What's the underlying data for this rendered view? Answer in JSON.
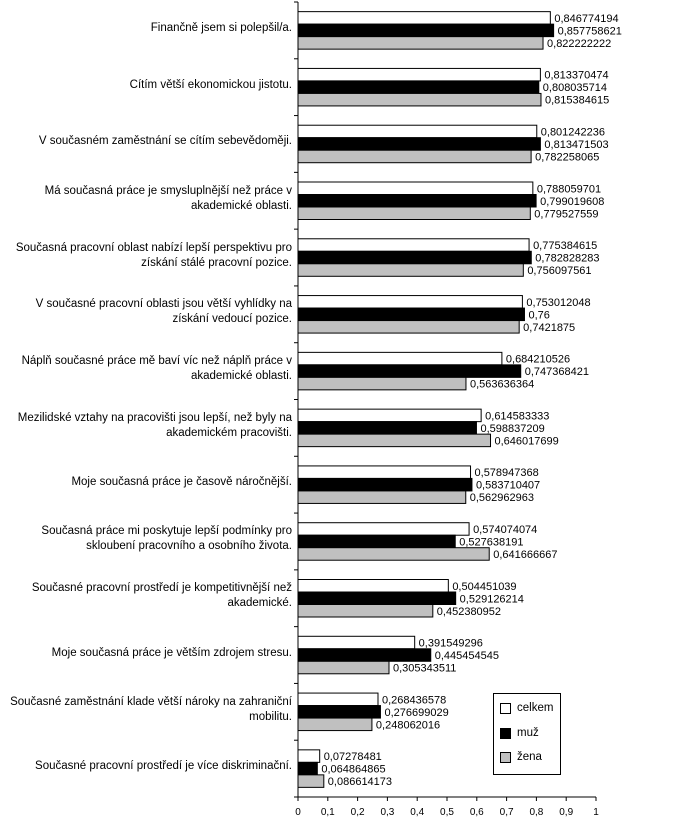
{
  "chart_data": {
    "type": "bar",
    "orientation": "horizontal",
    "categories": [
      "Finančně jsem si polepšil/a.",
      "Cítím větší ekonomickou jistotu.",
      "V současném zaměstnání se cítím sebevědoměji.",
      "Má současná práce je smysluplnější než práce v akademické oblasti.",
      "Současná pracovní oblast nabízí lepší perspektivu pro získání stálé pracovní pozice.",
      "V současné pracovní oblasti jsou větší vyhlídky na získání vedoucí pozice.",
      "Náplň současné práce mě baví víc než náplň práce v akademické oblasti.",
      "Mezilidské vztahy na pracovišti jsou lepší, než byly na akademickém pracovišti.",
      "Moje současná práce je časově náročnější.",
      "Současná práce mi poskytuje lepší podmínky pro skloubení pracovního a osobního života.",
      "Současné pracovní prostředí je kompetitivnější než akademické.",
      "Moje současná práce je větším zdrojem stresu.",
      "Současné zaměstnání klade větší nároky na zahraniční mobilitu.",
      "Současné pracovní prostředí je více diskriminační."
    ],
    "series": [
      {
        "name": "celkem",
        "color": "#ffffff",
        "values": [
          0.846774194,
          0.813370474,
          0.801242236,
          0.788059701,
          0.775384615,
          0.753012048,
          0.684210526,
          0.614583333,
          0.578947368,
          0.574074074,
          0.504451039,
          0.391549296,
          0.268436578,
          0.07278481
        ],
        "labels": [
          "0,846774194",
          "0,813370474",
          "0,801242236",
          "0,788059701",
          "0,775384615",
          "0,753012048",
          "0,684210526",
          "0,614583333",
          "0,578947368",
          "0,574074074",
          "0,504451039",
          "0,391549296",
          "0,268436578",
          "0,07278481"
        ]
      },
      {
        "name": "muž",
        "color": "#000000",
        "values": [
          0.857758621,
          0.808035714,
          0.813471503,
          0.799019608,
          0.782828283,
          0.76,
          0.747368421,
          0.598837209,
          0.583710407,
          0.527638191,
          0.529126214,
          0.445454545,
          0.276699029,
          0.064864865
        ],
        "labels": [
          "0,857758621",
          "0,808035714",
          "0,813471503",
          "0,799019608",
          "0,782828283",
          "0,76",
          "0,747368421",
          "0,598837209",
          "0,583710407",
          "0,527638191",
          "0,529126214",
          "0,445454545",
          "0,276699029",
          "0,064864865"
        ]
      },
      {
        "name": "žena",
        "color": "#c0c0c0",
        "values": [
          0.822222222,
          0.815384615,
          0.782258065,
          0.779527559,
          0.756097561,
          0.7421875,
          0.563636364,
          0.646017699,
          0.562962963,
          0.641666667,
          0.452380952,
          0.305343511,
          0.248062016,
          0.086614173
        ],
        "labels": [
          "0,822222222",
          "0,815384615",
          "0,782258065",
          "0,779527559",
          "0,756097561",
          "0,7421875",
          "0,563636364",
          "0,646017699",
          "0,562962963",
          "0,641666667",
          "0,452380952",
          "0,305343511",
          "0,248062016",
          "0,086614173"
        ]
      }
    ],
    "xlim": [
      0,
      1
    ],
    "xticks": [
      0,
      0.1,
      0.2,
      0.3,
      0.4,
      0.5,
      0.6,
      0.7,
      0.8,
      0.9,
      1
    ],
    "xtick_labels": [
      "0",
      "0,1",
      "0,2",
      "0,3",
      "0,4",
      "0,5",
      "0,6",
      "0,7",
      "0,8",
      "0,9",
      "1"
    ],
    "legend_position": "bottom-right",
    "grid": false
  }
}
